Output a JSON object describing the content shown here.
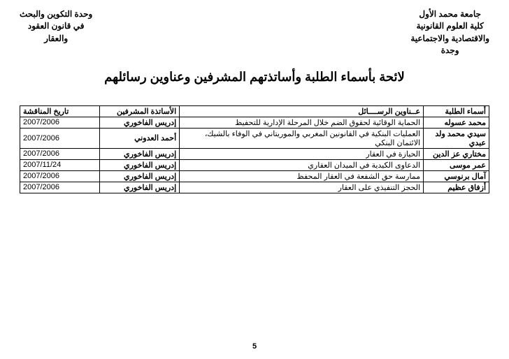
{
  "header": {
    "right": {
      "l1": "جامعة محمد الأول",
      "l2": "كلية العلوم القانونية",
      "l3": "والاقتصادية والاجتماعية",
      "l4": "وجدة"
    },
    "left": {
      "l1": "وحدة التكوين والبحث",
      "l2": "في قانون العقود",
      "l3": "والعقار"
    }
  },
  "title": "لائحة بأسماء الطلبة وأساتذتهم المشرفين وعناوين رسائلهم",
  "columns": {
    "name": "أسماء الطلبة",
    "thesis": "عــناوين الرســــائل",
    "supervisor": "الأساتذة المشرفين",
    "date": "تاريخ المناقشة"
  },
  "rows": [
    {
      "name": "محمد عسوله",
      "thesis": "الحماية الوقائية لحقوق الضم خلال المرحلة الإدارية للتحفيظ",
      "supervisor": "إدريس الفاخوري",
      "date": "2007/2006"
    },
    {
      "name": "سيدي محمد ولد عبدي",
      "thesis": "العمليات البنكية في القانونين المغربي والموريتاني في الوفاء بالشيك، الائتمان البنكي",
      "supervisor": "أحمد العدوني",
      "date": "2007/2006"
    },
    {
      "name": "مختاري عز الدين",
      "thesis": "الحيازة في العقار",
      "supervisor": "إدريس الفاخوري",
      "date": "2007/2006"
    },
    {
      "name": "عمر موسى",
      "thesis": "الدعاوى الكيدية في الميدان العقاري",
      "supervisor": "إدريس الفاخوري",
      "date": "2007/11/24"
    },
    {
      "name": "آمال برنوسي",
      "thesis": "ممارسة حق الشفعة في العقار المحفظ",
      "supervisor": "إدريس الفاخوري",
      "date": "2007/2006"
    },
    {
      "name": "أزفاق عظيم",
      "thesis": "الحجز التنفيذي على العقار",
      "supervisor": "إدريس الفاخوري",
      "date": "2007/2006"
    }
  ],
  "page_number": "5"
}
